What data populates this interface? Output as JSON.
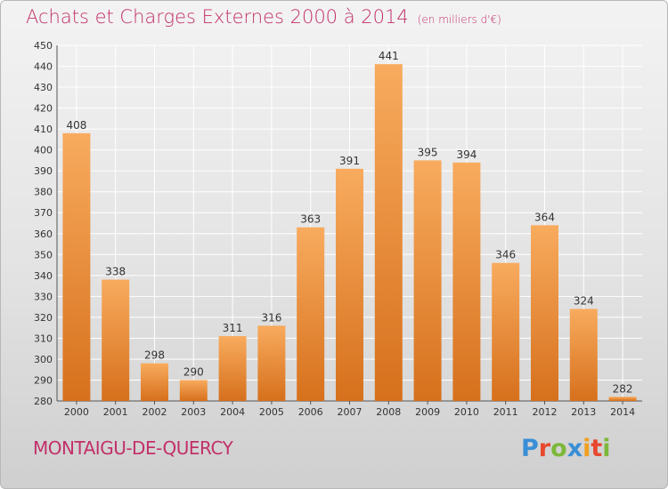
{
  "header": {
    "title": "Achats et Charges Externes 2000 à 2014",
    "unit": "(en milliers d'€)"
  },
  "footer": {
    "commune": "MONTAIGU-DE-QUERCY",
    "logo_text": "Proxiti"
  },
  "colors": {
    "title": "#c2306a",
    "bar_top": "#f8ab5e",
    "bar_bottom": "#d6701c",
    "logo_letters": [
      "#3a8fd6",
      "#e8482e",
      "#7cb83a",
      "#3a8fd6",
      "#f0a020",
      "#e8482e",
      "#7cb83a"
    ]
  },
  "chart_data": {
    "type": "bar",
    "categories": [
      "2000",
      "2001",
      "2002",
      "2003",
      "2004",
      "2005",
      "2006",
      "2007",
      "2008",
      "2009",
      "2010",
      "2011",
      "2012",
      "2013",
      "2014"
    ],
    "values": [
      408,
      338,
      298,
      290,
      311,
      316,
      363,
      391,
      441,
      395,
      394,
      346,
      364,
      324,
      282
    ],
    "ylim": [
      280,
      450
    ],
    "yticks": [
      280,
      290,
      300,
      310,
      320,
      330,
      340,
      350,
      360,
      370,
      380,
      390,
      400,
      410,
      420,
      430,
      440,
      450
    ],
    "grid": true,
    "legend": "none"
  }
}
